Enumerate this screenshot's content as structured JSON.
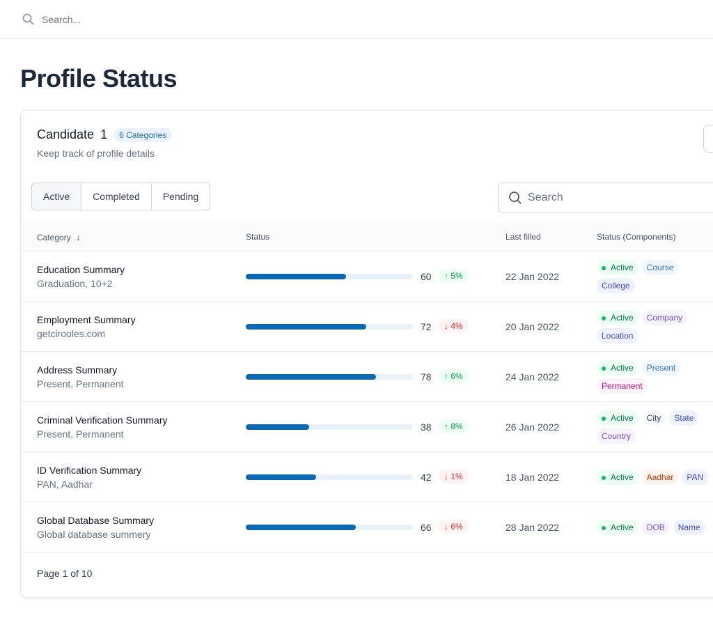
{
  "topbar": {
    "search_placeholder": "Search..."
  },
  "page_title": "Profile Status",
  "card": {
    "title": "Candidate",
    "number": "1",
    "badge": "6 Categories",
    "subtitle": "Keep track of profile details",
    "tabs": [
      "Active",
      "Completed",
      "Pending"
    ],
    "search_placeholder": "Search",
    "columns": [
      "Category",
      "Status",
      "Last filled",
      "Status (Components)"
    ],
    "rows": [
      {
        "title": "Education Summary",
        "sub": "Graduation, 10+2",
        "progress": 60,
        "value": "60",
        "change": "5%",
        "dir": "up",
        "date": "22 Jan 2022",
        "status": "Active",
        "tags": [
          {
            "t": "Course",
            "bg": "#eff6ff",
            "c": "#2f6fdb"
          },
          {
            "t": "College",
            "bg": "#eef2ff",
            "c": "#3e4ad0"
          }
        ]
      },
      {
        "title": "Employment Summary",
        "sub": "getcirooles.com",
        "progress": 72,
        "value": "72",
        "change": "4%",
        "dir": "down",
        "date": "20 Jan 2022",
        "status": "Active",
        "tags": [
          {
            "t": "Company",
            "bg": "#f4f3ff",
            "c": "#7a4fd6"
          },
          {
            "t": "Location",
            "bg": "#eef2ff",
            "c": "#3e4ad0"
          }
        ]
      },
      {
        "title": "Address Summary",
        "sub": "Present, Permanent",
        "progress": 78,
        "value": "78",
        "change": "6%",
        "dir": "up",
        "date": "24 Jan 2022",
        "status": "Active",
        "tags": [
          {
            "t": "Present",
            "bg": "#eff6ff",
            "c": "#2f6fdb"
          },
          {
            "t": "Permanent",
            "bg": "#fdf2fa",
            "c": "#c11574"
          }
        ]
      },
      {
        "title": "Criminal Verification Summary",
        "sub": "Present, Permanent",
        "progress": 38,
        "value": "38",
        "change": "8%",
        "dir": "up",
        "date": "26 Jan 2022",
        "status": "Active",
        "tags": [
          {
            "t": "City",
            "bg": "#f8f9fc",
            "c": "#363f72"
          },
          {
            "t": "State",
            "bg": "#eef2ff",
            "c": "#3e4ad0"
          },
          {
            "t": "Country",
            "bg": "#f4f3ff",
            "c": "#7a4fd6"
          }
        ]
      },
      {
        "title": "ID Verification Summary",
        "sub": "PAN, Aadhar",
        "progress": 42,
        "value": "42",
        "change": "1%",
        "dir": "down",
        "date": "18 Jan 2022",
        "status": "Active",
        "tags": [
          {
            "t": "Aadhar",
            "bg": "#fef6ee",
            "c": "#c4320a"
          },
          {
            "t": "PAN",
            "bg": "#eef2ff",
            "c": "#3e4ad0"
          }
        ]
      },
      {
        "title": "Global Database Summary",
        "sub": "Global database summery",
        "progress": 66,
        "value": "66",
        "change": "6%",
        "dir": "down",
        "date": "28 Jan 2022",
        "status": "Active",
        "tags": [
          {
            "t": "DOB",
            "bg": "#f4f3ff",
            "c": "#7a4fd6"
          },
          {
            "t": "Name",
            "bg": "#eef2ff",
            "c": "#3e4ad0"
          }
        ]
      }
    ],
    "pagination": "Page 1 of 10"
  }
}
